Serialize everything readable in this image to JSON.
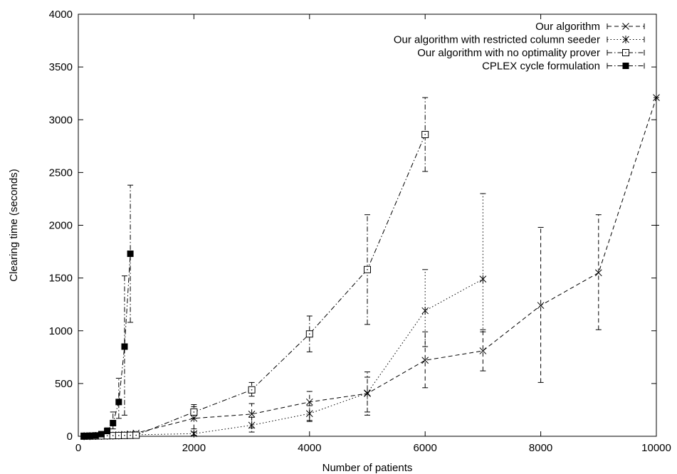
{
  "chart_data": {
    "type": "line",
    "title": "",
    "xlabel": "Number of patients",
    "ylabel": "Clearing time (seconds)",
    "xlim": [
      0,
      10000
    ],
    "ylim": [
      0,
      4000
    ],
    "xticks": [
      0,
      2000,
      4000,
      6000,
      8000,
      10000
    ],
    "yticks": [
      0,
      500,
      1000,
      1500,
      2000,
      2500,
      3000,
      3500,
      4000
    ],
    "xtick_labels": [
      "0",
      "2000",
      "4000",
      "6000",
      "8000",
      "10000"
    ],
    "ytick_labels": [
      "0",
      "500",
      "1000",
      "1500",
      "2000",
      "2500",
      "3000",
      "3500",
      "4000"
    ],
    "grid": false,
    "legend_position": "top-right",
    "series": [
      {
        "name": "Our algorithm",
        "marker": "x",
        "line": "dashed",
        "x": [
          100,
          200,
          300,
          400,
          500,
          600,
          700,
          800,
          900,
          1000,
          2000,
          3000,
          4000,
          5000,
          6000,
          7000,
          8000,
          9000,
          10000
        ],
        "y": [
          2,
          4,
          6,
          8,
          10,
          12,
          14,
          18,
          22,
          30,
          170,
          210,
          325,
          405,
          720,
          810,
          1240,
          1550,
          3210
        ],
        "yerr_low": [
          0,
          0,
          0,
          0,
          0,
          0,
          0,
          0,
          0,
          0,
          70,
          80,
          150,
          230,
          460,
          620,
          510,
          1010,
          2000
        ],
        "yerr_high": [
          0,
          0,
          0,
          0,
          0,
          0,
          0,
          0,
          0,
          0,
          280,
          310,
          425,
          560,
          990,
          1010,
          1980,
          2100,
          3210
        ]
      },
      {
        "name": "Our algorithm with restricted column seeder",
        "marker": "asterisk",
        "line": "dotted",
        "x": [
          100,
          200,
          300,
          400,
          500,
          600,
          700,
          800,
          900,
          1000,
          2000,
          3000,
          4000,
          5000,
          6000,
          7000
        ],
        "y": [
          1,
          2,
          3,
          4,
          5,
          6,
          8,
          10,
          12,
          14,
          25,
          105,
          215,
          410,
          1190,
          1490
        ],
        "yerr_low": [
          0,
          0,
          0,
          0,
          0,
          0,
          0,
          0,
          0,
          0,
          10,
          40,
          140,
          200,
          850,
          990
        ],
        "yerr_high": [
          0,
          0,
          0,
          0,
          0,
          0,
          0,
          0,
          0,
          0,
          40,
          180,
          290,
          610,
          1580,
          2300
        ]
      },
      {
        "name": "Our algorithm with no optimality prover",
        "marker": "square-open",
        "line": "dashdot",
        "x": [
          100,
          200,
          300,
          400,
          500,
          600,
          700,
          800,
          900,
          1000,
          2000,
          3000,
          4000,
          5000,
          6000
        ],
        "y": [
          1,
          2,
          3,
          4,
          5,
          6,
          7,
          8,
          9,
          10,
          230,
          440,
          970,
          1580,
          2860
        ],
        "yerr_low": [
          0,
          0,
          0,
          0,
          0,
          0,
          0,
          0,
          0,
          0,
          170,
          380,
          800,
          1060,
          2510
        ],
        "yerr_high": [
          0,
          0,
          0,
          0,
          0,
          0,
          0,
          0,
          0,
          0,
          300,
          510,
          1140,
          2100,
          3210
        ]
      },
      {
        "name": "CPLEX cycle formulation",
        "marker": "square-filled",
        "line": "dashdot",
        "x": [
          100,
          200,
          300,
          400,
          500,
          600,
          700,
          800,
          900
        ],
        "y": [
          2,
          4,
          8,
          20,
          50,
          125,
          325,
          850,
          1730
        ],
        "yerr_low": [
          0,
          0,
          2,
          10,
          25,
          70,
          170,
          200,
          1080
        ],
        "yerr_high": [
          4,
          8,
          15,
          40,
          80,
          230,
          550,
          1520,
          2380
        ]
      }
    ]
  }
}
